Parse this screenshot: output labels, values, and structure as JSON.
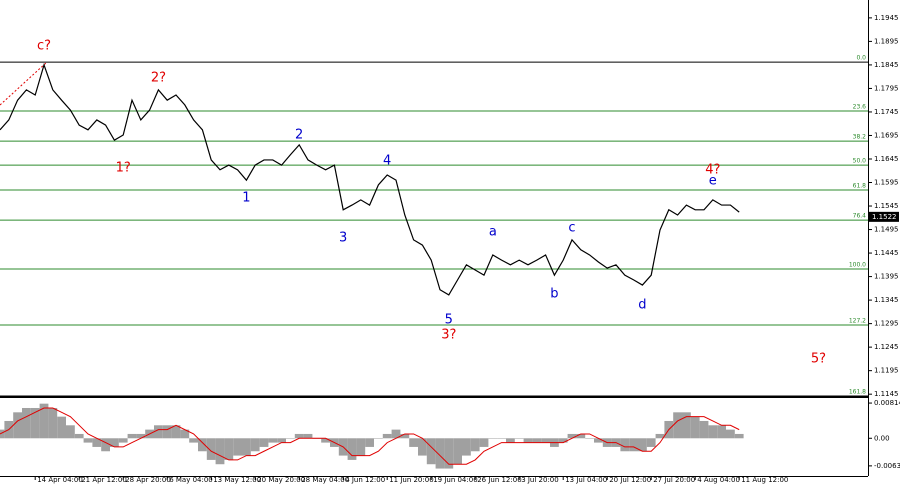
{
  "chart_data": [
    {
      "type": "line",
      "categories": [
        null,
        null,
        null,
        null,
        "14 Apr 04:00",
        null,
        null,
        null,
        null,
        "21 Apr 12:00",
        null,
        null,
        null,
        null,
        "28 Apr 20:00",
        null,
        null,
        null,
        null,
        "6 May 04:00",
        null,
        null,
        null,
        null,
        "13 May 12:00",
        null,
        null,
        null,
        null,
        "20 May 20:00",
        null,
        null,
        null,
        null,
        "28 May 04:00",
        null,
        null,
        null,
        null,
        "4 Jun 12:00",
        null,
        null,
        null,
        null,
        "11 Jun 20:00",
        null,
        null,
        null,
        null,
        "19 Jun 04:00",
        null,
        null,
        null,
        null,
        "26 Jun 12:00",
        null,
        null,
        null,
        null,
        "3 Jul 20:00",
        null,
        null,
        null,
        null,
        "13 Jul 04:00",
        null,
        null,
        null,
        null,
        "20 Jul 12:00",
        null,
        null,
        null,
        null,
        "27 Jul 20:00",
        null,
        null,
        null,
        null,
        "4 Aug 04:00",
        null,
        null,
        null,
        null,
        "11 Aug 12:00"
      ],
      "series": [
        {
          "color": "#000000",
          "values": [
            1.1707,
            1.1728,
            1.177,
            1.1792,
            1.1781,
            1.1845,
            1.1792,
            1.177,
            1.1749,
            1.1717,
            1.1707,
            1.1728,
            1.1717,
            1.1685,
            1.1696,
            1.177,
            1.1728,
            1.1749,
            1.1792,
            1.177,
            1.1781,
            1.176,
            1.1728,
            1.1707,
            1.1643,
            1.1622,
            1.1632,
            1.1622,
            1.16,
            1.1632,
            1.1643,
            1.1643,
            1.1632,
            1.1654,
            1.1675,
            1.1643,
            1.1632,
            1.1622,
            1.1632,
            1.1537,
            1.1547,
            1.1558,
            1.1547,
            1.159,
            1.1611,
            1.16,
            1.1526,
            1.1473,
            1.1462,
            1.143,
            1.1367,
            1.1356,
            1.1388,
            1.142,
            1.1409,
            1.1398,
            1.1441,
            1.143,
            1.142,
            1.143,
            1.142,
            1.143,
            1.1441,
            1.1398,
            1.143,
            1.1473,
            1.1452,
            1.1441,
            1.1426,
            1.1413,
            1.142,
            1.1398,
            1.1388,
            1.1377,
            1.1398,
            1.1494,
            1.1537,
            1.1526,
            1.1547,
            1.1537,
            1.1537,
            1.1558,
            1.1547,
            1.1547,
            1.1532
          ]
        }
      ],
      "ylim": [
        1.1139,
        1.1983
      ],
      "yticks": [
        1.1945,
        1.1895,
        1.1845,
        1.1795,
        1.1745,
        1.1695,
        1.1645,
        1.1595,
        1.1545,
        1.1495,
        1.1445,
        1.1395,
        1.1345,
        1.1295,
        1.1245,
        1.1195,
        1.1145
      ],
      "current_price": 1.1522,
      "fib_color": "#2e8b2e",
      "levels": [
        {
          "value": 1.1851,
          "label": "0.0"
        },
        {
          "value": 1.1747,
          "label": "23.6"
        },
        {
          "value": 1.1683,
          "label": "38.2"
        },
        {
          "value": 1.1632,
          "label": "50.0"
        },
        {
          "value": 1.1579,
          "label": "61.8"
        },
        {
          "value": 1.1515,
          "label": "76.4"
        },
        {
          "value": 1.1411,
          "label": "100.0"
        },
        {
          "value": 1.1292,
          "label": "127.2"
        },
        {
          "value": 1.1141,
          "label": "161.8"
        }
      ],
      "annotations": [
        {
          "text": "c?",
          "index": 5,
          "price": 1.1885,
          "color": "#e00000"
        },
        {
          "text": "2?",
          "index": 18,
          "price": 1.1817,
          "color": "#e00000"
        },
        {
          "text": "1?",
          "index": 14,
          "price": 1.1626,
          "color": "#e00000"
        },
        {
          "text": "1",
          "index": 28,
          "price": 1.1562,
          "color": "#0000cc"
        },
        {
          "text": "2",
          "index": 34,
          "price": 1.1696,
          "color": "#0000cc"
        },
        {
          "text": "3",
          "index": 39,
          "price": 1.1477,
          "color": "#0000cc"
        },
        {
          "text": "4",
          "index": 44,
          "price": 1.1641,
          "color": "#0000cc"
        },
        {
          "text": "5",
          "index": 51,
          "price": 1.1303,
          "color": "#0000cc"
        },
        {
          "text": "3?",
          "index": 51,
          "price": 1.1271,
          "color": "#e00000"
        },
        {
          "text": "a",
          "index": 56,
          "price": 1.149,
          "color": "#0000cc"
        },
        {
          "text": "b",
          "index": 63,
          "price": 1.1358,
          "color": "#0000cc"
        },
        {
          "text": "c",
          "index": 65,
          "price": 1.1498,
          "color": "#0000cc"
        },
        {
          "text": "d",
          "index": 73,
          "price": 1.1335,
          "color": "#0000cc"
        },
        {
          "text": "e",
          "index": 81,
          "price": 1.1598,
          "color": "#0000cc"
        },
        {
          "text": "4?",
          "index": 81,
          "price": 1.1622,
          "color": "#e00000"
        },
        {
          "text": "5?",
          "index": 93,
          "price": 1.122,
          "color": "#e00000"
        }
      ]
    },
    {
      "type": "histogram-oscillator",
      "series": [
        {
          "color": "#a0a0a0",
          "values": [
            0.002,
            0.004,
            0.006,
            0.007,
            0.007,
            0.008,
            0.007,
            0.005,
            0.003,
            0.001,
            -0.001,
            -0.002,
            -0.003,
            -0.002,
            -0.001,
            0.001,
            0.001,
            0.002,
            0.003,
            0.003,
            0.003,
            0.002,
            -0.001,
            -0.003,
            -0.005,
            -0.006,
            -0.005,
            -0.004,
            -0.004,
            -0.003,
            -0.002,
            -0.001,
            -0.001,
            0,
            0.001,
            0.001,
            0,
            -0.001,
            -0.002,
            -0.004,
            -0.005,
            -0.004,
            -0.002,
            0,
            0.001,
            0.002,
            0.001,
            -0.002,
            -0.004,
            -0.006,
            -0.007,
            -0.007,
            -0.006,
            -0.004,
            -0.003,
            -0.002,
            0,
            0,
            -0.001,
            0,
            -0.001,
            -0.001,
            -0.001,
            -0.002,
            -0.001,
            0.001,
            0.001,
            0,
            -0.001,
            -0.002,
            -0.002,
            -0.003,
            -0.003,
            -0.003,
            -0.002,
            0.001,
            0.004,
            0.006,
            0.006,
            0.005,
            0.004,
            0.003,
            0.003,
            0.002,
            0.001
          ]
        },
        {
          "color": "#e00000",
          "values": [
            0.001,
            0.002,
            0.004,
            0.005,
            0.006,
            0.007,
            0.007,
            0.006,
            0.005,
            0.003,
            0.001,
            0,
            -0.001,
            -0.002,
            -0.002,
            -0.001,
            0,
            0.001,
            0.002,
            0.002,
            0.003,
            0.002,
            0.001,
            -0.001,
            -0.003,
            -0.004,
            -0.005,
            -0.005,
            -0.004,
            -0.004,
            -0.003,
            -0.002,
            -0.001,
            -0.001,
            0,
            0,
            0,
            0,
            -0.001,
            -0.002,
            -0.004,
            -0.004,
            -0.004,
            -0.003,
            -0.001,
            0,
            0.001,
            0.001,
            0,
            -0.002,
            -0.004,
            -0.006,
            -0.006,
            -0.006,
            -0.005,
            -0.003,
            -0.002,
            -0.001,
            -0.001,
            -0.001,
            -0.001,
            -0.001,
            -0.001,
            -0.001,
            -0.001,
            0,
            0.001,
            0.001,
            0,
            -0.001,
            -0.001,
            -0.002,
            -0.002,
            -0.003,
            -0.003,
            -0.001,
            0.002,
            0.004,
            0.005,
            0.005,
            0.005,
            0.004,
            0.003,
            0.003,
            0.002
          ]
        }
      ],
      "ylim": [
        -0.00872,
        0.00931
      ],
      "yticks": [
        0.00814,
        {
          "value": 0,
          "label": "0.00"
        },
        -0.00638
      ]
    }
  ]
}
